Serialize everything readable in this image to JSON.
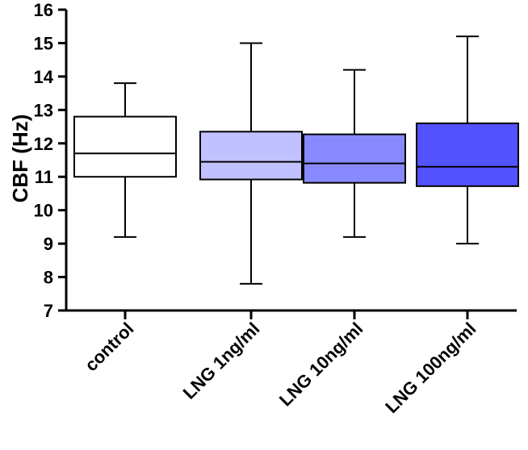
{
  "chart_data": {
    "type": "box",
    "title": "",
    "xlabel": "",
    "ylabel": "CBF (Hz)",
    "ylim": [
      7,
      16
    ],
    "yticks": [
      7,
      8,
      9,
      10,
      11,
      12,
      13,
      14,
      15,
      16
    ],
    "grid": false,
    "categories": [
      "control",
      "LNG 1ng/ml",
      "LNG 10ng/ml",
      "LNG 100ng/ml"
    ],
    "boxes": [
      {
        "category": "control",
        "min": 9.2,
        "q1": 11.0,
        "median": 11.7,
        "q3": 12.8,
        "max": 13.8,
        "color": "#ffffff"
      },
      {
        "category": "LNG 1ng/ml",
        "min": 7.8,
        "q1": 10.92,
        "median": 11.45,
        "q3": 12.35,
        "max": 15.0,
        "color": "#c1c1ff"
      },
      {
        "category": "LNG 10ng/ml",
        "min": 9.2,
        "q1": 10.82,
        "median": 11.4,
        "q3": 12.27,
        "max": 14.2,
        "color": "#8989ff"
      },
      {
        "category": "LNG 100ng/ml",
        "min": 9.0,
        "q1": 10.72,
        "median": 11.3,
        "q3": 12.6,
        "max": 15.2,
        "color": "#5252ff"
      }
    ]
  }
}
